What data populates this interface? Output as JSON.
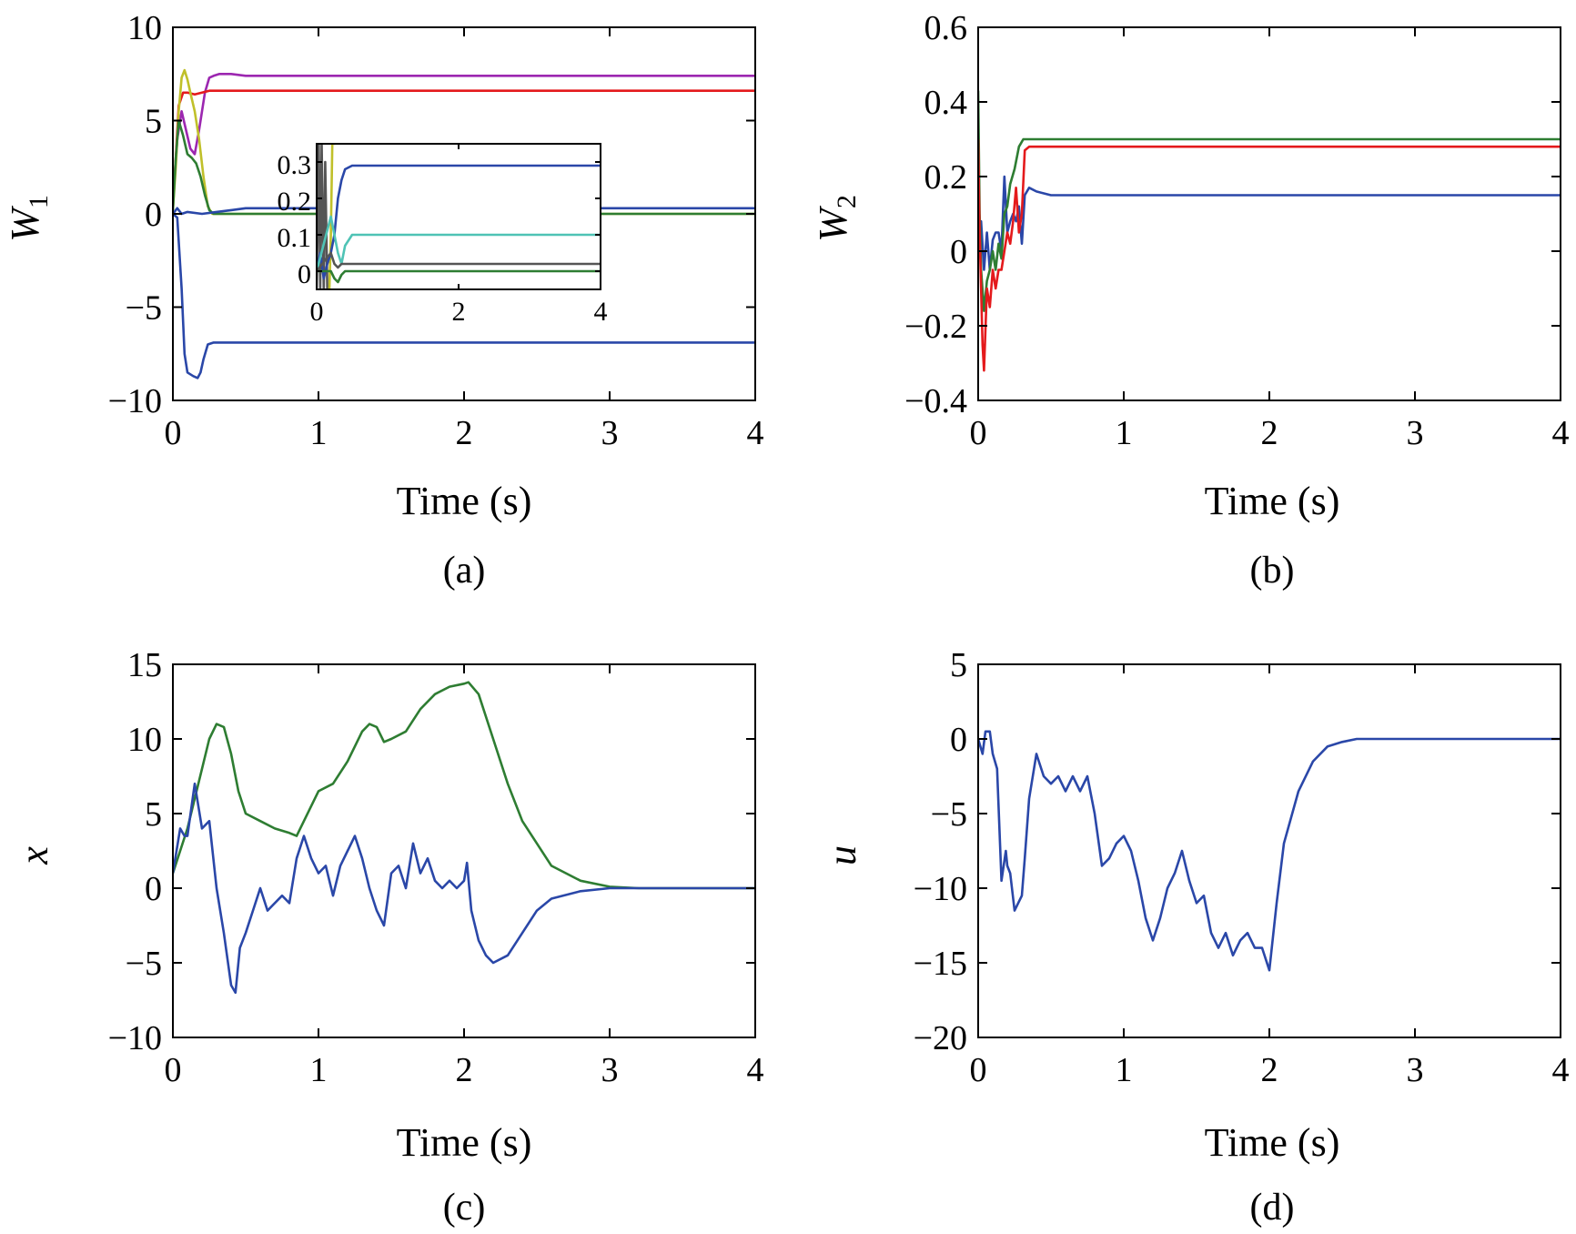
{
  "colors": {
    "blue": "#2a47a8",
    "green": "#2e7d32",
    "red": "#e41a1c",
    "purple": "#9c27b0",
    "yellow": "#c0c02a",
    "teal": "#4fc3b5",
    "gray": "#555555"
  },
  "chart_data": [
    {
      "id": "a",
      "type": "line",
      "caption": "(a)",
      "xlabel": "Time (s)",
      "ylabel": "W",
      "ylabel_sub": "1",
      "xlim": [
        0,
        4
      ],
      "ylim": [
        -10,
        10
      ],
      "xticks": [
        0,
        1,
        2,
        3,
        4
      ],
      "xtick_labels": [
        "0",
        "1",
        "2",
        "3",
        "4"
      ],
      "yticks": [
        -10,
        -5,
        0,
        5,
        10
      ],
      "ytick_labels": [
        "−10",
        "−5",
        "0",
        "5",
        "10"
      ],
      "series": [
        {
          "color": "purple",
          "x": [
            0,
            0.03,
            0.06,
            0.09,
            0.12,
            0.15,
            0.18,
            0.22,
            0.25,
            0.28,
            0.32,
            0.4,
            0.5,
            0.7,
            1,
            2,
            3,
            4
          ],
          "y": [
            0.5,
            4,
            5.5,
            4.5,
            3.5,
            3.2,
            4.5,
            6.5,
            7.3,
            7.4,
            7.5,
            7.5,
            7.4,
            7.4,
            7.4,
            7.4,
            7.4,
            7.4
          ]
        },
        {
          "color": "red",
          "x": [
            0,
            0.02,
            0.04,
            0.07,
            0.1,
            0.15,
            0.2,
            0.25,
            0.3,
            0.4,
            0.5,
            1,
            2,
            3,
            4
          ],
          "y": [
            0.5,
            3,
            5.8,
            6.5,
            6.5,
            6.4,
            6.5,
            6.6,
            6.6,
            6.6,
            6.6,
            6.6,
            6.6,
            6.6,
            6.6
          ]
        },
        {
          "color": "yellow",
          "x": [
            0,
            0.02,
            0.04,
            0.06,
            0.08,
            0.1,
            0.12,
            0.15,
            0.18,
            0.21,
            0.24,
            0.27,
            0.3,
            0.4,
            1,
            2,
            3,
            4
          ],
          "y": [
            0.2,
            2.5,
            5.5,
            7.3,
            7.7,
            7.2,
            6.5,
            5.5,
            4,
            2,
            0.4,
            0,
            0,
            0,
            0,
            0,
            0,
            0
          ]
        },
        {
          "color": "green",
          "x": [
            0,
            0.02,
            0.04,
            0.07,
            0.1,
            0.13,
            0.16,
            0.19,
            0.22,
            0.25,
            0.28,
            0.4,
            1,
            2,
            3,
            4
          ],
          "y": [
            0.2,
            3,
            5,
            4.2,
            3.2,
            3.0,
            2.7,
            2.0,
            1.0,
            0.2,
            0,
            0,
            0,
            0,
            0,
            0
          ]
        },
        {
          "color": "blue",
          "x": [
            0,
            0.03,
            0.06,
            0.1,
            0.2,
            0.3,
            0.4,
            0.5,
            1,
            2,
            3,
            4
          ],
          "y": [
            0,
            0.3,
            0,
            0.1,
            0,
            0.1,
            0.2,
            0.3,
            0.3,
            0.3,
            0.3,
            0.3
          ]
        },
        {
          "color": "blue",
          "x": [
            0,
            0.03,
            0.06,
            0.08,
            0.1,
            0.14,
            0.17,
            0.19,
            0.21,
            0.24,
            0.28,
            0.35,
            0.5,
            1,
            2,
            3,
            4
          ],
          "y": [
            0,
            -0.2,
            -4,
            -7.5,
            -8.5,
            -8.7,
            -8.8,
            -8.5,
            -7.8,
            -7.0,
            -6.9,
            -6.9,
            -6.9,
            -6.9,
            -6.9,
            -6.9,
            -6.9
          ]
        }
      ],
      "inset": {
        "xlim": [
          0,
          4
        ],
        "ylim": [
          -0.05,
          0.35
        ],
        "xticks": [
          0,
          2,
          4
        ],
        "xtick_labels": [
          "0",
          "2",
          "4"
        ],
        "yticks": [
          0,
          0.1,
          0.2,
          0.3
        ],
        "ytick_labels": [
          "0",
          "0.1",
          "0.2",
          "0.3"
        ],
        "series": [
          {
            "color": "gray",
            "x": [
              0,
              0.03,
              0.05,
              0.07,
              0.1,
              0.12,
              0.15
            ],
            "y": [
              -0.05,
              0.35,
              -0.05,
              0.35,
              -0.05,
              0.3,
              -0.05
            ]
          },
          {
            "color": "yellow",
            "x": [
              0.18,
              0.2,
              0.22,
              0.24,
              0.26
            ],
            "y": [
              -0.05,
              0.1,
              0.35,
              0.35,
              0.35
            ]
          },
          {
            "color": "blue",
            "x": [
              0,
              0.05,
              0.1,
              0.15,
              0.2,
              0.25,
              0.3,
              0.35,
              0.4,
              0.5,
              0.6,
              0.8,
              1,
              2,
              3,
              4
            ],
            "y": [
              0,
              0.05,
              -0.02,
              0.02,
              0.05,
              0.1,
              0.2,
              0.25,
              0.28,
              0.29,
              0.29,
              0.29,
              0.29,
              0.29,
              0.29,
              0.29
            ]
          },
          {
            "color": "teal",
            "x": [
              0,
              0.2,
              0.25,
              0.3,
              0.35,
              0.4,
              0.5,
              0.6,
              1,
              2,
              3,
              4
            ],
            "y": [
              0,
              0.15,
              0.1,
              0.05,
              0.02,
              0.07,
              0.1,
              0.1,
              0.1,
              0.1,
              0.1,
              0.1
            ]
          },
          {
            "color": "gray",
            "x": [
              0,
              0.2,
              0.25,
              0.3,
              0.35,
              0.4,
              0.5,
              1,
              2,
              3,
              4
            ],
            "y": [
              0,
              0.05,
              0.02,
              0.01,
              0.02,
              0.02,
              0.02,
              0.02,
              0.02,
              0.02,
              0.02
            ]
          },
          {
            "color": "green",
            "x": [
              0,
              0.2,
              0.25,
              0.3,
              0.35,
              0.4,
              0.5,
              1,
              2,
              3,
              4
            ],
            "y": [
              0,
              0,
              -0.02,
              -0.03,
              -0.01,
              0,
              0,
              0,
              0,
              0,
              0
            ]
          }
        ]
      }
    },
    {
      "id": "b",
      "type": "line",
      "caption": "(b)",
      "xlabel": "Time (s)",
      "ylabel": "W",
      "ylabel_sub": "2",
      "xlim": [
        0,
        4
      ],
      "ylim": [
        -0.4,
        0.6
      ],
      "xticks": [
        0,
        1,
        2,
        3,
        4
      ],
      "xtick_labels": [
        "0",
        "1",
        "2",
        "3",
        "4"
      ],
      "yticks": [
        -0.4,
        -0.2,
        0,
        0.2,
        0.4,
        0.6
      ],
      "ytick_labels": [
        "−0.4",
        "−0.2",
        "0",
        "0.2",
        "0.4",
        "0.6"
      ],
      "series": [
        {
          "color": "blue",
          "x": [
            0,
            0.02,
            0.04,
            0.06,
            0.08,
            0.1,
            0.12,
            0.14,
            0.16,
            0.18,
            0.2,
            0.22,
            0.24,
            0.26,
            0.28,
            0.3,
            0.32,
            0.35,
            0.4,
            0.5,
            1,
            2,
            3,
            4
          ],
          "y": [
            0,
            0.08,
            -0.05,
            0.05,
            -0.05,
            0.03,
            0.05,
            0.05,
            0,
            0.2,
            0.05,
            0.08,
            0.1,
            0.08,
            0.12,
            0.02,
            0.15,
            0.17,
            0.16,
            0.15,
            0.15,
            0.15,
            0.15,
            0.15
          ]
        },
        {
          "color": "green",
          "x": [
            0,
            0.01,
            0.02,
            0.04,
            0.06,
            0.08,
            0.1,
            0.12,
            0.14,
            0.16,
            0.18,
            0.2,
            0.22,
            0.25,
            0.28,
            0.31,
            0.35,
            0.4,
            0.5,
            1,
            2,
            3,
            4
          ],
          "y": [
            0.43,
            0.1,
            -0.05,
            -0.16,
            -0.08,
            -0.05,
            0,
            -0.05,
            0.02,
            -0.02,
            0.1,
            0.12,
            0.18,
            0.22,
            0.28,
            0.3,
            0.3,
            0.3,
            0.3,
            0.3,
            0.3,
            0.3,
            0.3
          ]
        },
        {
          "color": "red",
          "x": [
            0,
            0.01,
            0.03,
            0.04,
            0.06,
            0.08,
            0.1,
            0.12,
            0.14,
            0.16,
            0.18,
            0.2,
            0.22,
            0.24,
            0.26,
            0.28,
            0.3,
            0.32,
            0.35,
            0.4,
            0.5,
            1,
            2,
            3,
            4
          ],
          "y": [
            0.3,
            0.05,
            -0.25,
            -0.32,
            -0.1,
            -0.15,
            -0.05,
            -0.1,
            -0.05,
            -0.05,
            0,
            0.05,
            0.02,
            0.08,
            0.17,
            0.05,
            0.1,
            0.27,
            0.28,
            0.28,
            0.28,
            0.28,
            0.28,
            0.28,
            0.28
          ]
        }
      ]
    },
    {
      "id": "c",
      "type": "line",
      "caption": "(c)",
      "xlabel": "Time (s)",
      "ylabel": "x",
      "ylabel_sub": "",
      "xlim": [
        0,
        4
      ],
      "ylim": [
        -10,
        15
      ],
      "xticks": [
        0,
        1,
        2,
        3,
        4
      ],
      "xtick_labels": [
        "0",
        "1",
        "2",
        "3",
        "4"
      ],
      "yticks": [
        -10,
        -5,
        0,
        5,
        10,
        15
      ],
      "ytick_labels": [
        "−10",
        "−5",
        "0",
        "5",
        "10",
        "15"
      ],
      "series": [
        {
          "color": "green",
          "x": [
            0,
            0.05,
            0.1,
            0.15,
            0.2,
            0.25,
            0.3,
            0.35,
            0.4,
            0.45,
            0.5,
            0.6,
            0.7,
            0.8,
            0.85,
            0.9,
            0.95,
            1,
            1.1,
            1.2,
            1.3,
            1.35,
            1.4,
            1.45,
            1.5,
            1.6,
            1.7,
            1.8,
            1.9,
            2,
            2.03,
            2.1,
            2.2,
            2.3,
            2.4,
            2.5,
            2.6,
            2.8,
            3,
            3.2,
            3.5,
            4
          ],
          "y": [
            1,
            2.5,
            4,
            6,
            8,
            10,
            11,
            10.8,
            9,
            6.5,
            5,
            4.5,
            4,
            3.7,
            3.5,
            4.5,
            5.5,
            6.5,
            7,
            8.5,
            10.5,
            11,
            10.8,
            9.8,
            10,
            10.5,
            12,
            13,
            13.5,
            13.7,
            13.8,
            13,
            10,
            7,
            4.5,
            3,
            1.5,
            0.5,
            0.1,
            0,
            0,
            0
          ]
        },
        {
          "color": "blue",
          "x": [
            0,
            0.05,
            0.08,
            0.1,
            0.15,
            0.2,
            0.25,
            0.3,
            0.35,
            0.4,
            0.43,
            0.46,
            0.5,
            0.55,
            0.6,
            0.65,
            0.7,
            0.75,
            0.8,
            0.85,
            0.9,
            0.95,
            1,
            1.05,
            1.1,
            1.15,
            1.2,
            1.25,
            1.3,
            1.35,
            1.4,
            1.45,
            1.5,
            1.55,
            1.6,
            1.65,
            1.7,
            1.75,
            1.8,
            1.85,
            1.9,
            1.95,
            2,
            2.02,
            2.05,
            2.1,
            2.15,
            2.2,
            2.3,
            2.4,
            2.5,
            2.6,
            2.8,
            3,
            3.2,
            4
          ],
          "y": [
            1,
            4,
            3.5,
            3.5,
            7,
            4,
            4.5,
            0,
            -3,
            -6.5,
            -7,
            -4,
            -3,
            -1.5,
            0,
            -1.5,
            -1,
            -0.5,
            -1,
            2,
            3.5,
            2,
            1,
            1.5,
            -0.5,
            1.5,
            2.5,
            3.5,
            2,
            0,
            -1.5,
            -2.5,
            1,
            1.5,
            0,
            3,
            1,
            2,
            0.5,
            0,
            0.5,
            0,
            0.5,
            1.7,
            -1.5,
            -3.5,
            -4.5,
            -5,
            -4.5,
            -3,
            -1.5,
            -0.7,
            -0.2,
            0,
            0,
            0
          ]
        }
      ]
    },
    {
      "id": "d",
      "type": "line",
      "caption": "(d)",
      "xlabel": "Time (s)",
      "ylabel": "u",
      "ylabel_sub": "",
      "xlim": [
        0,
        4
      ],
      "ylim": [
        -20,
        5
      ],
      "xticks": [
        0,
        1,
        2,
        3,
        4
      ],
      "xtick_labels": [
        "0",
        "1",
        "2",
        "3",
        "4"
      ],
      "yticks": [
        -20,
        -15,
        -10,
        -5,
        0,
        5
      ],
      "ytick_labels": [
        "−20",
        "−15",
        "−10",
        "−5",
        "0",
        "5"
      ],
      "series": [
        {
          "color": "blue",
          "x": [
            0,
            0.03,
            0.05,
            0.08,
            0.1,
            0.13,
            0.16,
            0.19,
            0.2,
            0.22,
            0.25,
            0.3,
            0.32,
            0.35,
            0.4,
            0.45,
            0.5,
            0.55,
            0.6,
            0.65,
            0.7,
            0.75,
            0.8,
            0.85,
            0.9,
            0.95,
            1,
            1.05,
            1.1,
            1.15,
            1.2,
            1.25,
            1.3,
            1.35,
            1.4,
            1.45,
            1.5,
            1.55,
            1.6,
            1.65,
            1.7,
            1.75,
            1.8,
            1.85,
            1.9,
            1.95,
            2,
            2.05,
            2.1,
            2.2,
            2.3,
            2.4,
            2.5,
            2.6,
            2.8,
            3,
            4
          ],
          "y": [
            0,
            -1,
            0.5,
            0.5,
            -1,
            -2,
            -9.5,
            -7.5,
            -8.5,
            -9,
            -11.5,
            -10.5,
            -8,
            -4,
            -1,
            -2.5,
            -3,
            -2.5,
            -3.5,
            -2.5,
            -3.5,
            -2.5,
            -5,
            -8.5,
            -8,
            -7,
            -6.5,
            -7.5,
            -9.5,
            -12,
            -13.5,
            -12,
            -10,
            -9,
            -7.5,
            -9.5,
            -11,
            -10.5,
            -13,
            -14,
            -13,
            -14.5,
            -13.5,
            -13,
            -14,
            -14,
            -15.5,
            -11,
            -7,
            -3.5,
            -1.5,
            -0.5,
            -0.2,
            0,
            0,
            0,
            0
          ]
        }
      ]
    }
  ]
}
